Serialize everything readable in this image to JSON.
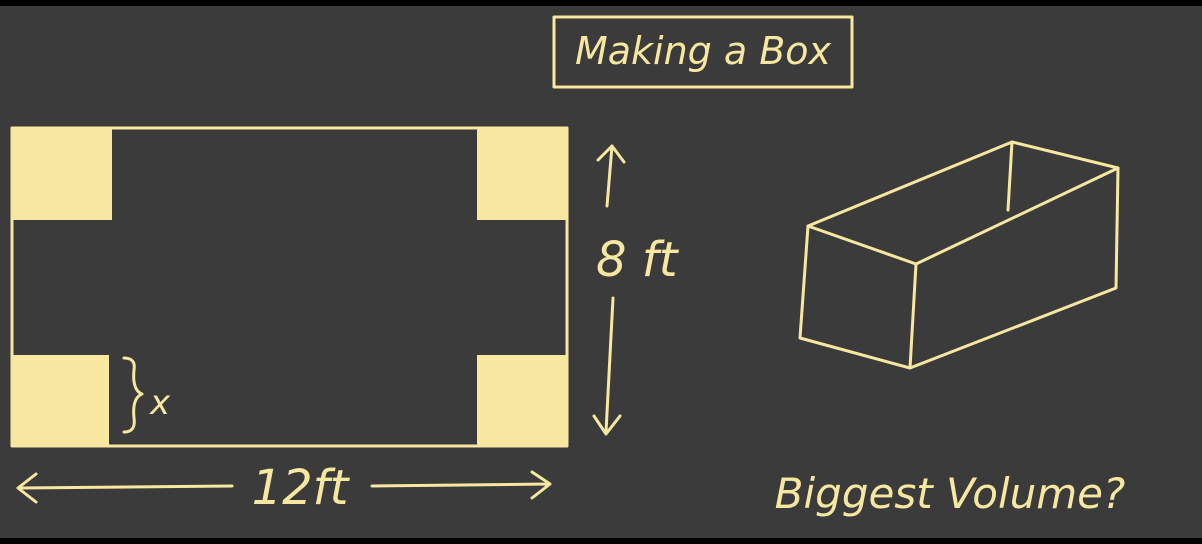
{
  "title": "Making a Box",
  "dimensions": {
    "width_label": "12ft",
    "height_label": "8 ft",
    "cut_label": "x"
  },
  "question": "Biggest Volume?",
  "colors": {
    "background": "#3b3b3b",
    "chalk": "#f7e7a0"
  }
}
